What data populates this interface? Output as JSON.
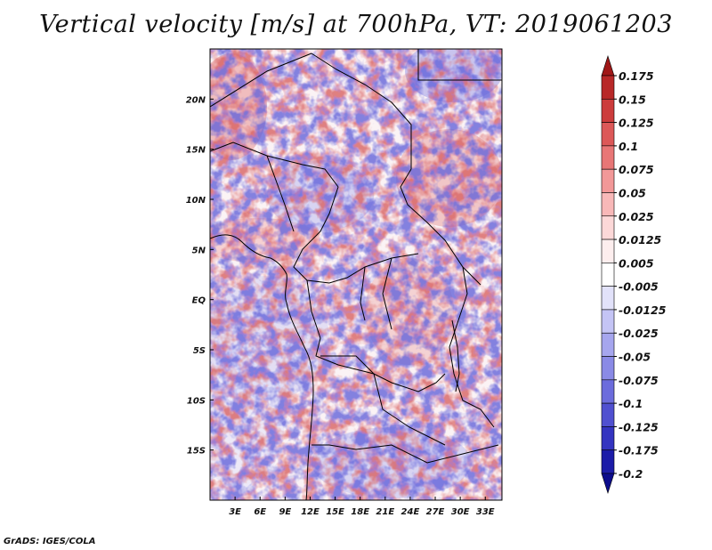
{
  "title": "Vertical velocity [m/s] at 700hPa, VT: 2019061203",
  "credit": "GrADS: IGES/COLA",
  "map": {
    "lat_labels": [
      "20N",
      "15N",
      "10N",
      "5N",
      "EQ",
      "5S",
      "10S",
      "15S"
    ],
    "lat_values": [
      20,
      15,
      10,
      5,
      0,
      -5,
      -10,
      -15
    ],
    "lon_labels": [
      "3E",
      "6E",
      "9E",
      "12E",
      "15E",
      "18E",
      "21E",
      "24E",
      "27E",
      "30E",
      "33E"
    ],
    "lon_values": [
      3,
      6,
      9,
      12,
      15,
      18,
      21,
      24,
      27,
      30,
      33
    ],
    "lon_range": [
      0,
      35
    ],
    "lat_range": [
      -20,
      25
    ]
  },
  "colorbar": {
    "labels": [
      "0.175",
      "0.15",
      "0.125",
      "0.1",
      "0.075",
      "0.05",
      "0.025",
      "0.0125",
      "0.005",
      "-0.005",
      "-0.0125",
      "-0.025",
      "-0.05",
      "-0.075",
      "-0.1",
      "-0.125",
      "-0.175",
      "-0.2"
    ],
    "colors": [
      "#a01818",
      "#b82828",
      "#cc3c3c",
      "#dc5858",
      "#e87676",
      "#f29898",
      "#f8b8b8",
      "#fcd8d8",
      "#fdeeee",
      "#ffffff",
      "#e2e2fa",
      "#c4c4f5",
      "#a6a6ee",
      "#8a8ae6",
      "#6c6cdc",
      "#5050d0",
      "#3434c0",
      "#1c1ca8",
      "#0c0c8c"
    ]
  },
  "colors": {
    "positive": "#e36a6a",
    "negative": "#6e6ee0",
    "background": "#ffffff"
  }
}
